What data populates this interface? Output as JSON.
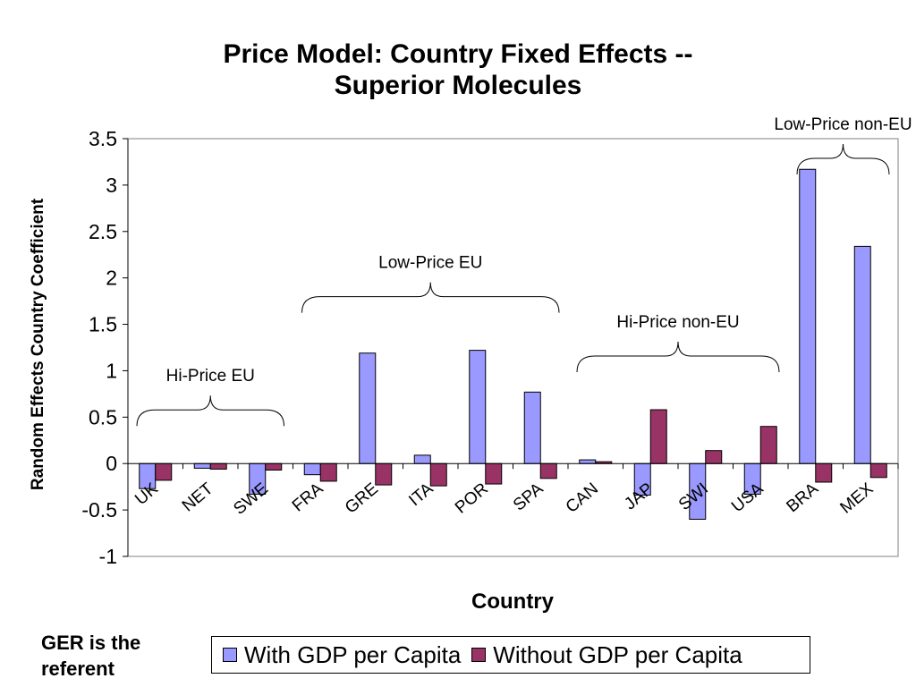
{
  "chart_data": {
    "type": "bar",
    "title_lines": [
      "Price Model: Country Fixed Effects --",
      "Superior Molecules"
    ],
    "xlabel": "Country",
    "ylabel": "Random Effects Country Coefficient",
    "ylim": [
      -1,
      3.5
    ],
    "yticks": [
      "3.5",
      "3",
      "2.5",
      "2",
      "1.5",
      "1",
      "0.5",
      "0",
      "-0.5",
      "-1"
    ],
    "ytick_values": [
      3.5,
      3,
      2.5,
      2,
      1.5,
      1,
      0.5,
      0,
      -0.5,
      -1
    ],
    "categories": [
      "UK",
      "NET",
      "SWE",
      "FRA",
      "GRE",
      "ITA",
      "POR",
      "SPA",
      "CAN",
      "JAP",
      "SWI",
      "USA",
      "BRA",
      "MEX"
    ],
    "series": [
      {
        "name": "With GDP per Capita",
        "color": "#9999ff",
        "values": [
          -0.27,
          -0.05,
          -0.33,
          -0.12,
          1.19,
          0.09,
          1.22,
          0.77,
          0.04,
          -0.34,
          -0.6,
          -0.33,
          3.17,
          2.34
        ]
      },
      {
        "name": "Without GDP per Capita",
        "color": "#993366",
        "values": [
          -0.18,
          -0.06,
          -0.07,
          -0.19,
          -0.23,
          -0.24,
          -0.22,
          -0.16,
          0.02,
          0.58,
          0.14,
          0.4,
          -0.2,
          -0.15
        ]
      }
    ],
    "groups": [
      {
        "label": "Hi-Price EU",
        "from": "UK",
        "to": "SWE"
      },
      {
        "label": "Low-Price EU",
        "from": "FRA",
        "to": "SPA"
      },
      {
        "label": "Hi-Price non-EU",
        "from": "CAN",
        "to": "USA"
      },
      {
        "label": "Low-Price non-EU",
        "from": "BRA",
        "to": "MEX"
      }
    ],
    "legend_position": "bottom",
    "grid": false
  },
  "note_lines": [
    "GER is the",
    "referent"
  ]
}
